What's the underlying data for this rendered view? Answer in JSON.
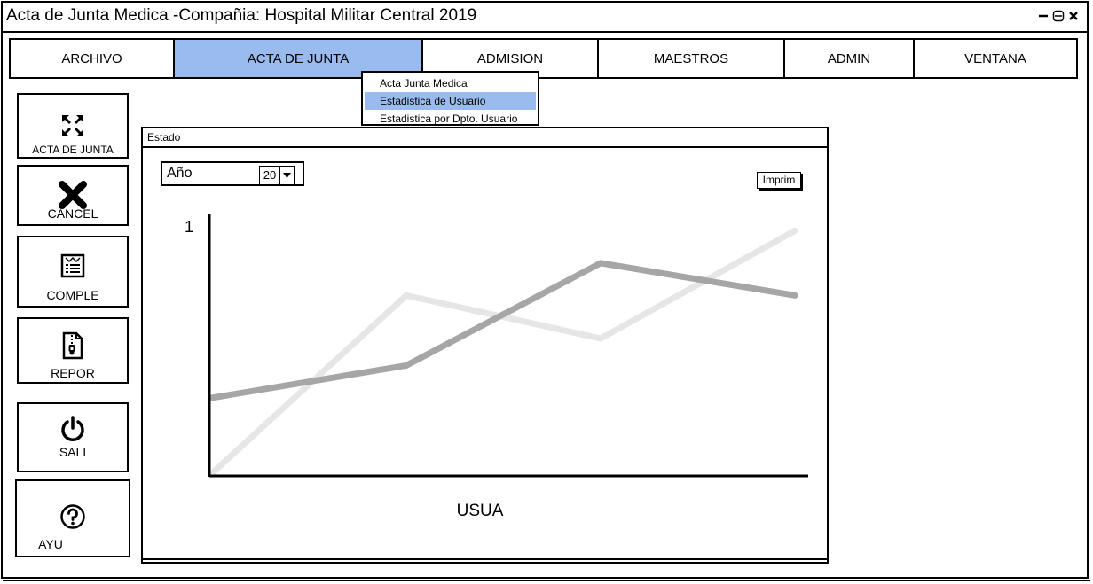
{
  "window": {
    "title": "Acta de Junta Medica -Compañia: Hospital Militar Central 2019"
  },
  "menu": {
    "items": [
      {
        "label": "ARCHIVO"
      },
      {
        "label": "ACTA DE JUNTA"
      },
      {
        "label": "ADMISION"
      },
      {
        "label": "MAESTROS"
      },
      {
        "label": "ADMIN"
      },
      {
        "label": "VENTANA"
      }
    ],
    "active_index": 1,
    "dropdown": [
      {
        "label": "Acta Junta Medica"
      },
      {
        "label": "Estadistica de Usuario"
      },
      {
        "label": "Estadistica por Dpto. Usuario"
      }
    ],
    "dropdown_selected_index": 1
  },
  "sidebar": {
    "buttons": [
      {
        "label": "ACTA DE JUNTA",
        "icon": "expand-arrows-icon"
      },
      {
        "label": "CANCEL",
        "icon": "close-x-icon"
      },
      {
        "label": "COMPLE",
        "icon": "document-list-icon"
      },
      {
        "label": "REPOR",
        "icon": "zip-file-icon"
      },
      {
        "label": "SALI",
        "icon": "power-icon"
      },
      {
        "label": "AYU",
        "icon": "help-icon"
      }
    ]
  },
  "panel": {
    "title": "Estado",
    "year_label": "Año",
    "year_value": "20",
    "print_label": "Imprim"
  },
  "chart_data": {
    "type": "line",
    "xlabel": "USUA",
    "ylabel": "",
    "y_tick_top": "1",
    "series": [
      {
        "color": "#e6e6e6",
        "values": [
          0.0,
          0.66,
          0.5,
          0.9
        ]
      },
      {
        "color": "#a6a6a6",
        "values": [
          0.28,
          0.4,
          0.78,
          0.66
        ]
      }
    ]
  }
}
